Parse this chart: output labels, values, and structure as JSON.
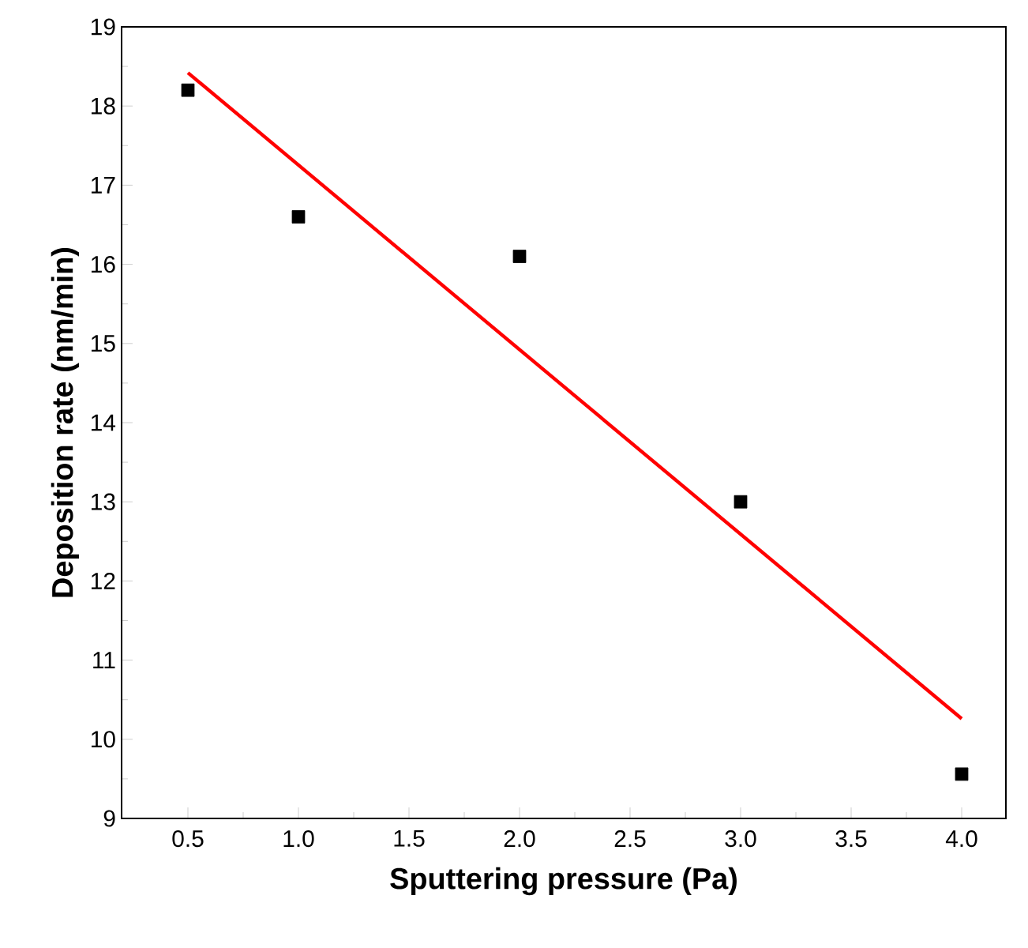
{
  "chart_data": {
    "type": "scatter",
    "xlabel": "Sputtering pressure (Pa)",
    "ylabel": "Deposition rate (nm/min)",
    "xlim": [
      0.2,
      4.2
    ],
    "ylim": [
      9,
      19
    ],
    "xticks": [
      {
        "value": 0.5,
        "label": "0.5"
      },
      {
        "value": 1.0,
        "label": "1.0"
      },
      {
        "value": 1.5,
        "label": "1.5"
      },
      {
        "value": 2.0,
        "label": "2.0"
      },
      {
        "value": 2.5,
        "label": "2.5"
      },
      {
        "value": 3.0,
        "label": "3.0"
      },
      {
        "value": 3.5,
        "label": "3.5"
      },
      {
        "value": 4.0,
        "label": "4.0"
      }
    ],
    "yticks": [
      9,
      10,
      11,
      12,
      13,
      14,
      15,
      16,
      17,
      18,
      19
    ],
    "grid": false,
    "series": [
      {
        "color": "#000000",
        "marker": "square",
        "x": [
          0.5,
          1.0,
          2.0,
          3.0,
          4.0
        ],
        "values": [
          18.2,
          16.6,
          16.1,
          13.0,
          9.56
        ]
      },
      {
        "type": "line",
        "color": "#ff0000",
        "marker": "none",
        "line_style": "solid",
        "x": [
          0.5,
          4.0
        ],
        "values": [
          18.42,
          10.26
        ]
      }
    ]
  }
}
